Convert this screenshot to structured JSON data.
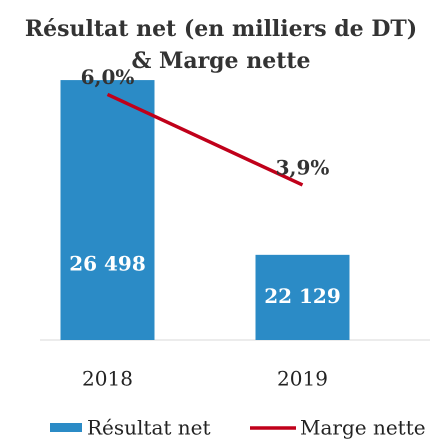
{
  "chart_data": {
    "type": "bar+line",
    "title": [
      "Résultat net (en milliers de DT)",
      "& Marge nette"
    ],
    "categories": [
      "2018",
      "2019"
    ],
    "series": [
      {
        "name": "Résultat net",
        "type": "bar",
        "color": "#2b8bc6",
        "values": [
          26498,
          22129
        ],
        "value_labels": [
          "26 498",
          "22 129"
        ]
      },
      {
        "name": "Marge nette",
        "type": "line",
        "axis": "y2",
        "color": "#c0001a",
        "values": [
          6.0,
          3.9
        ],
        "value_labels": [
          "6,0%",
          "3,9%"
        ]
      }
    ],
    "ylim": [
      20000,
      27000
    ],
    "y2lim": [
      0.3,
      6.8
    ],
    "legend": "bottom"
  }
}
